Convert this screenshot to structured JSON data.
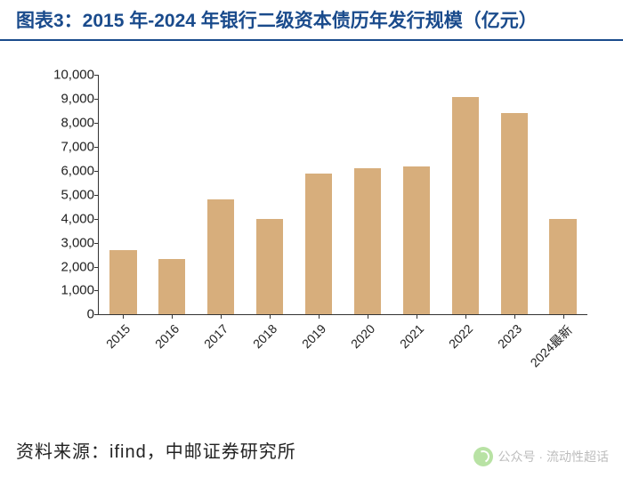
{
  "title": "图表3：2015 年-2024 年银行二级资本债历年发行规模（亿元）",
  "source": "资料来源：ifind，中邮证券研究所",
  "watermark": "公众号 · 流动性超话",
  "chart": {
    "type": "bar",
    "categories": [
      "2015",
      "2016",
      "2017",
      "2018",
      "2019",
      "2020",
      "2021",
      "2022",
      "2023",
      "2024最新"
    ],
    "values": [
      2700,
      2300,
      4800,
      4000,
      5900,
      6100,
      6200,
      9100,
      8400,
      4000
    ],
    "bar_color": "#d7ae7c",
    "bar_width": 0.55,
    "ylim": [
      0,
      10000
    ],
    "ytick_step": 1000,
    "ytick_labels": [
      "0",
      "1,000",
      "2,000",
      "3,000",
      "4,000",
      "5,000",
      "6,000",
      "7,000",
      "8,000",
      "9,000",
      "10,000"
    ],
    "axis_color": "#333333",
    "label_fontsize": 15,
    "xlabel_fontsize": 14,
    "xlabel_rotation": -45,
    "background_color": "#ffffff",
    "title_color": "#1a4b8c",
    "title_fontsize": 21
  }
}
